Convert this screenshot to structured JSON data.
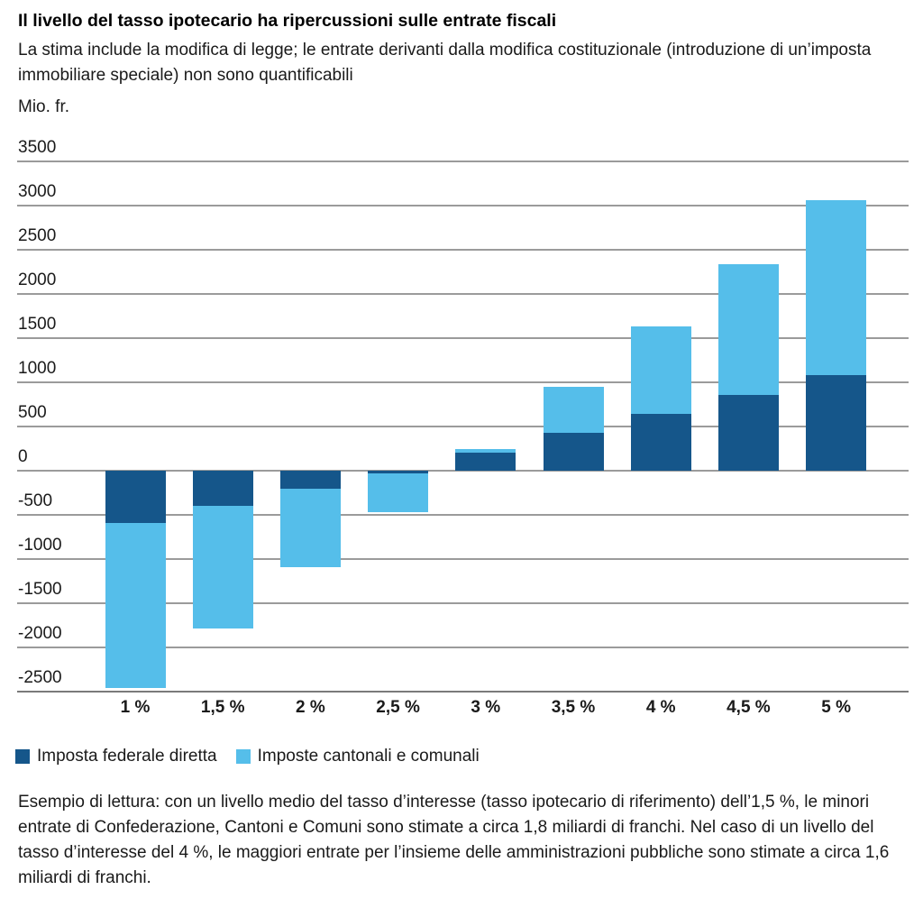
{
  "header": {
    "title": "Il livello del tasso ipotecario ha ripercussioni sulle entrate fiscali",
    "subtitle": "La stima include la modifica di legge; le entrate derivanti dalla modifica costituzionale (introduzione di un’imposta immobiliare speciale) non sono quantificabili",
    "unit_label": "Mio. fr."
  },
  "chart_data": {
    "type": "bar",
    "stacked": true,
    "title": "Il livello del tasso ipotecario ha ripercussioni sulle entrate fiscali",
    "ylabel": "Mio. fr.",
    "xlabel": "",
    "categories": [
      "1 %",
      "1,5 %",
      "2 %",
      "2,5 %",
      "3 %",
      "3,5 %",
      "4 %",
      "4,5 %",
      "5 %"
    ],
    "series": [
      {
        "name": "Imposta federale diretta",
        "color": "#15568a",
        "values": [
          -590,
          -400,
          -200,
          -30,
          200,
          430,
          640,
          860,
          1080
        ]
      },
      {
        "name": "Imposte cantonali e comunali",
        "color": "#55beea",
        "values": [
          -1870,
          -1390,
          -890,
          -440,
          50,
          520,
          990,
          1480,
          1980
        ]
      }
    ],
    "totals": [
      -2460,
      -1790,
      -1090,
      -470,
      250,
      950,
      1630,
      2340,
      3060
    ],
    "ylim": [
      -2500,
      3500
    ],
    "ytick_step": 500,
    "grid": true,
    "legend_position": "bottom"
  },
  "colors": {
    "federal": "#15568a",
    "cantonal": "#55beea",
    "gridline": "#9b9b9b",
    "axis_line": "#7a7a7a",
    "text": "#1a1a1a"
  },
  "footer": {
    "reading_example": "Esempio di lettura: con un livello medio del tasso d’interesse (tasso ipotecario di riferimento) dell’1,5 %, le minori entrate di Confederazione, Cantoni e Comuni sono stimate a circa 1,8 miliardi di franchi. Nel caso di un livello del tasso d’interesse del 4 %, le maggiori entrate per l’insieme delle amministrazioni pubbliche sono stimate a circa 1,6 miliardi di franchi."
  }
}
